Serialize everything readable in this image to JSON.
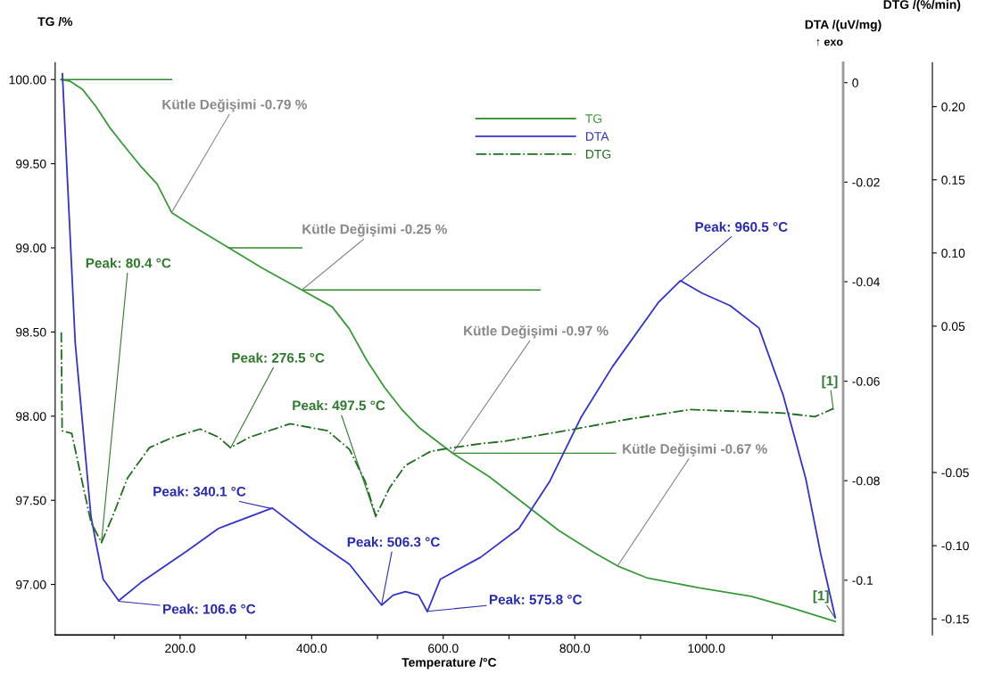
{
  "chart_data": {
    "type": "line",
    "xlabel": "Temperature /°C",
    "ylabel": "TG /%",
    "y2label": "DTA /(uV/mg)",
    "y3label": "DTG /(%/min)",
    "xlim": [
      10,
      1208
    ],
    "xticks": [
      {
        "value": 100,
        "label": null
      },
      {
        "value": 200,
        "label": "200.0"
      },
      {
        "value": 300,
        "label": null
      },
      {
        "value": 400,
        "label": "400.0"
      },
      {
        "value": 500,
        "label": null
      },
      {
        "value": 600,
        "label": "600.0"
      },
      {
        "value": 700,
        "label": null
      },
      {
        "value": 800,
        "label": "800.0"
      },
      {
        "value": 900,
        "label": null
      },
      {
        "value": 1000,
        "label": "1000.0"
      },
      {
        "value": 1100,
        "label": null
      }
    ],
    "ylim": [
      96.7,
      100.1
    ],
    "yticks": [
      {
        "value": 97,
        "label": "97.00"
      },
      {
        "value": 97.5,
        "label": "97.50"
      },
      {
        "value": 98,
        "label": "98.00"
      },
      {
        "value": 98.5,
        "label": "98.50"
      },
      {
        "value": 99,
        "label": "99.00"
      },
      {
        "value": 99.5,
        "label": "99.50"
      },
      {
        "value": 100,
        "label": "100.00"
      }
    ],
    "y2lim": [
      -0.111,
      0.004
    ],
    "y2ticks": [
      -0.1,
      -0.08,
      -0.06,
      -0.04,
      -0.02,
      0
    ],
    "y3lim": [
      -0.161,
      0.23
    ],
    "y3ticks": [
      {
        "value": -0.15,
        "label": "-0.15"
      },
      {
        "value": -0.1,
        "label": "-0.10"
      },
      {
        "value": -0.05,
        "label": "-0.05"
      },
      {
        "value": 0.05,
        "label": "0.05"
      },
      {
        "value": 0.1,
        "label": "0.10"
      },
      {
        "value": 0.15,
        "label": "0.15"
      },
      {
        "value": 0.2,
        "label": "0.20"
      }
    ],
    "grid": false,
    "legend": "top",
    "marker": "none",
    "series": [
      {
        "name": "TG",
        "color": "#3a9a3a",
        "line_style": "solid",
        "x": [
          19,
          33,
          52,
          72,
          92,
          112,
          139,
          165,
          187,
          219,
          274,
          325,
          385,
          431,
          457,
          484,
          511,
          537,
          564,
          614,
          670,
          723,
          776,
          829,
          865,
          909,
          989,
          1068,
          1122,
          1196
        ],
        "values": [
          100.0,
          99.99,
          99.94,
          99.84,
          99.72,
          99.62,
          99.49,
          99.38,
          99.21,
          99.13,
          99.0,
          98.88,
          98.75,
          98.65,
          98.52,
          98.33,
          98.17,
          98.04,
          97.93,
          97.78,
          97.64,
          97.48,
          97.32,
          97.19,
          97.11,
          97.04,
          96.98,
          96.93,
          96.87,
          96.78
        ]
      },
      {
        "name": "DTA",
        "color": "#3333cc",
        "line_style": "solid",
        "axis": "y2",
        "x": [
          21,
          40.5,
          64.4,
          73.7,
          83,
          106.6,
          140.1,
          210.5,
          258.3,
          340.1,
          400.4,
          457.5,
          506.3,
          523.9,
          542.5,
          562.4,
          575.8,
          595.6,
          656.7,
          715.1,
          761.6,
          809.4,
          857.2,
          927.6,
          960.5,
          993.3,
          1036,
          1080,
          1117,
          1151,
          1174,
          1196
        ],
        "values": [
          0.0018,
          -0.0523,
          -0.0871,
          -0.0936,
          -0.0998,
          -0.1041,
          -0.1005,
          -0.0941,
          -0.0896,
          -0.0855,
          -0.0916,
          -0.0968,
          -0.105,
          -0.103,
          -0.1023,
          -0.103,
          -0.1063,
          -0.0998,
          -0.0954,
          -0.0896,
          -0.0802,
          -0.0673,
          -0.0571,
          -0.0441,
          -0.0398,
          -0.0423,
          -0.0448,
          -0.0493,
          -0.0629,
          -0.0795,
          -0.0948,
          -0.1075
        ]
      },
      {
        "name": "DTG",
        "color": "#1f6e1f",
        "line_style": "dashdot",
        "axis": "y3",
        "x": [
          19.3,
          20.6,
          35.2,
          64.4,
          80.4,
          97.6,
          120.2,
          153.4,
          186.6,
          230.4,
          258.3,
          276.5,
          306.1,
          367.2,
          424.3,
          457.5,
          481.4,
          497.5,
          518.6,
          542.5,
          581.1,
          614.3,
          662.1,
          691.2,
          785.5,
          881.1,
          975.4,
          1047,
          1117,
          1165,
          1193
        ],
        "values": [
          0.0458,
          -0.0215,
          -0.0233,
          -0.0839,
          -0.0979,
          -0.0797,
          -0.0536,
          -0.033,
          -0.0264,
          -0.0203,
          -0.0258,
          -0.033,
          -0.0258,
          -0.0167,
          -0.0215,
          -0.0342,
          -0.0561,
          -0.0797,
          -0.0603,
          -0.0452,
          -0.0355,
          -0.033,
          -0.03,
          -0.0288,
          -0.0215,
          -0.0136,
          -0.007,
          -0.0082,
          -0.0094,
          -0.0118,
          -0.0064
        ]
      },
      {
        "color": "#2f8a2f",
        "line_style": "solid",
        "x": [
          19,
          187
        ],
        "values": [
          100.0,
          100.0
        ]
      },
      {
        "color": "#2f8a2f",
        "line_style": "solid",
        "x": [
          274,
          385
        ],
        "values": [
          99.0,
          99.0
        ]
      },
      {
        "color": "#2f8a2f",
        "line_style": "solid",
        "x": [
          385,
          747
        ],
        "values": [
          98.75,
          98.75
        ]
      },
      {
        "color": "#2f8a2f",
        "line_style": "solid",
        "x": [
          614,
          862
        ],
        "values": [
          97.78,
          97.78
        ]
      }
    ],
    "annotations": [
      {
        "text": "Kütle Değişimi -0.79 %",
        "x": 187,
        "y": 99.21
      },
      {
        "text": "Kütle Değişimi -0.25 %",
        "x": 385,
        "y": 98.75
      },
      {
        "text": "Kütle Değişimi -0.97 %",
        "x": 614,
        "y": 97.78
      },
      {
        "text": "Kütle Değişimi -0.67 %",
        "x": 865,
        "y": 97.11
      },
      {
        "text": "Peak: 80.4 °C",
        "x": 80.4,
        "y": 97.25
      },
      {
        "text": "Peak: 276.5 °C",
        "x": 276.5,
        "y": 97.81
      },
      {
        "text": "Peak: 497.5 °C",
        "x": 497.5,
        "y": 97.4
      },
      {
        "text": "Peak: 340.1 °C",
        "x": 340.1,
        "y": 97.45
      },
      {
        "text": "Peak: 106.6 °C",
        "x": 106.6,
        "y": 96.9
      },
      {
        "text": "Peak: 506.3 °C",
        "x": 506.3,
        "y": 96.88
      },
      {
        "text": "Peak: 575.8 °C",
        "x": 575.8,
        "y": 96.84
      },
      {
        "text": "Peak: 960.5 °C",
        "x": 960.5,
        "y": 98.8
      },
      {
        "text": "[1]",
        "x": 1193,
        "y": 98.04
      },
      {
        "text": "[1]",
        "x": 1196,
        "y": 96.8
      },
      "↑ exo"
    ]
  }
}
